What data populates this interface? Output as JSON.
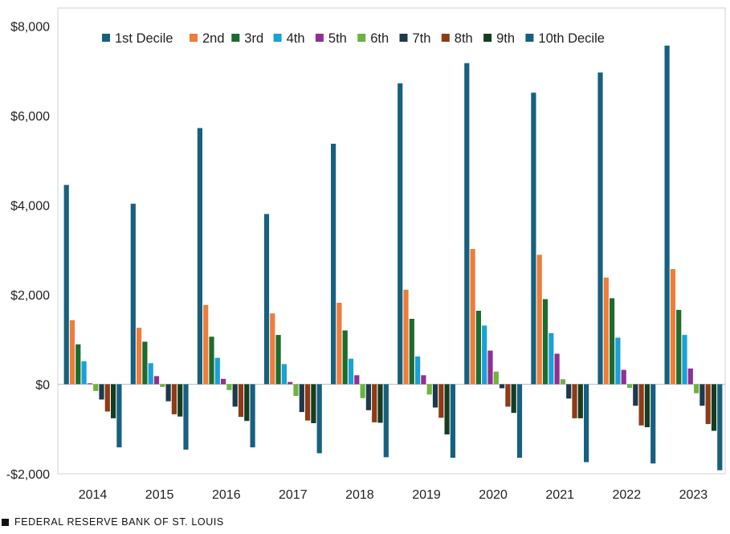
{
  "chart_data": {
    "type": "bar",
    "categories": [
      "2014",
      "2015",
      "2016",
      "2017",
      "2018",
      "2019",
      "2020",
      "2021",
      "2022",
      "2023"
    ],
    "ylim": [
      -2000,
      8400
    ],
    "yticks": [
      -2000,
      0,
      2000,
      4000,
      6000,
      8000
    ],
    "ytick_labels": [
      "-$2,000",
      "$0",
      "$2,000",
      "$4,000",
      "$6,000",
      "$8,000"
    ],
    "grid": false,
    "legend_position": "top",
    "series": [
      {
        "name": "1st Decile",
        "color": "#17607f",
        "values": [
          4450,
          4030,
          5720,
          3800,
          5370,
          6720,
          7170,
          6510,
          6960,
          7560
        ]
      },
      {
        "name": "2nd",
        "color": "#ed7d3a",
        "values": [
          1430,
          1260,
          1770,
          1580,
          1820,
          2110,
          3020,
          2890,
          2380,
          2570
        ]
      },
      {
        "name": "3rd",
        "color": "#1e6b2f",
        "values": [
          890,
          950,
          1060,
          1100,
          1200,
          1460,
          1640,
          1900,
          1920,
          1660
        ]
      },
      {
        "name": "4th",
        "color": "#1ba0d7",
        "values": [
          510,
          470,
          590,
          450,
          570,
          620,
          1310,
          1140,
          1040,
          1100
        ]
      },
      {
        "name": "5th",
        "color": "#912f92",
        "values": [
          20,
          180,
          120,
          50,
          200,
          200,
          750,
          680,
          320,
          350
        ]
      },
      {
        "name": "6th",
        "color": "#6db33f",
        "values": [
          -150,
          -60,
          -130,
          -260,
          -310,
          -230,
          280,
          110,
          -80,
          -200
        ]
      },
      {
        "name": "7th",
        "color": "#1c3a4c",
        "values": [
          -340,
          -380,
          -500,
          -620,
          -580,
          -520,
          -90,
          -320,
          -480,
          -480
        ]
      },
      {
        "name": "8th",
        "color": "#8e3b16",
        "values": [
          -610,
          -670,
          -730,
          -810,
          -850,
          -750,
          -500,
          -760,
          -920,
          -890
        ]
      },
      {
        "name": "9th",
        "color": "#153d22",
        "values": [
          -760,
          -720,
          -820,
          -870,
          -860,
          -1120,
          -640,
          -760,
          -960,
          -1040
        ]
      },
      {
        "name": "10th Decile",
        "color": "#17607f",
        "values": [
          -1410,
          -1460,
          -1410,
          -1540,
          -1630,
          -1640,
          -1640,
          -1740,
          -1770,
          -1920
        ]
      }
    ]
  },
  "footer": {
    "source": "FEDERAL RESERVE BANK OF ST. LOUIS"
  }
}
